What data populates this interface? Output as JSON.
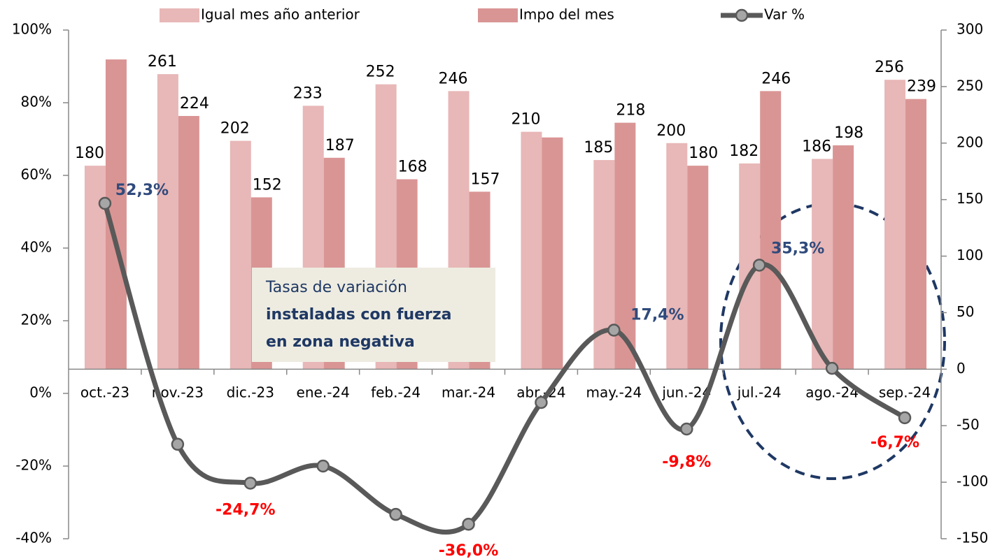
{
  "chart_data": {
    "type": "bar",
    "categories": [
      "oct.-23",
      "nov.-23",
      "dic.-23",
      "ene.-24",
      "feb.-24",
      "mar.-24",
      "abr.-24",
      "may.-24",
      "jun.-24",
      "jul.-24",
      "ago.-24",
      "sep.-24"
    ],
    "series": [
      {
        "name": "Igual mes año anterior",
        "type": "bar",
        "axis": "y2",
        "color": "#e8b7b7",
        "values": [
          180,
          261,
          202,
          233,
          252,
          246,
          210,
          185,
          200,
          182,
          186,
          256
        ]
      },
      {
        "name": "Impo del mes",
        "type": "bar",
        "axis": "y2",
        "color": "#d99594",
        "values": [
          274,
          224,
          152,
          187,
          168,
          157,
          205,
          218,
          180,
          246,
          198,
          239
        ],
        "value_labels": [
          null,
          "224",
          "152",
          "187",
          "168",
          "157",
          null,
          "218",
          "180",
          "246",
          "198",
          "239"
        ]
      },
      {
        "name": "Var %",
        "type": "line",
        "axis": "y",
        "color": "#595959",
        "values": [
          52.3,
          -14.0,
          -24.7,
          -20.0,
          -33.3,
          -36.0,
          -2.5,
          17.4,
          -9.8,
          35.3,
          6.9,
          -6.7
        ],
        "value_labels": [
          "52,3%",
          null,
          "-24,7%",
          null,
          null,
          "-36,0%",
          null,
          "17,4%",
          "-9,8%",
          "35,3%",
          null,
          "-6,7%"
        ]
      }
    ],
    "ylim": [
      -40,
      100
    ],
    "yticks": [
      {
        "value": 100,
        "label": "100%"
      },
      {
        "value": 80,
        "label": "80%"
      },
      {
        "value": 60,
        "label": "60%"
      },
      {
        "value": 40,
        "label": "40%"
      },
      {
        "value": 20,
        "label": "20%"
      },
      {
        "value": 0,
        "label": "0%"
      },
      {
        "value": -20,
        "label": "-20%"
      },
      {
        "value": -40,
        "label": "-40%"
      }
    ],
    "y2lim": [
      -150,
      300
    ],
    "y2ticks": [
      300,
      250,
      200,
      150,
      100,
      50,
      0,
      -50,
      -100,
      -150
    ],
    "annotation": {
      "lines": [
        "Tasas de variación",
        "instaladas con fuerza",
        "en zona negativa"
      ]
    },
    "legend": "top"
  }
}
